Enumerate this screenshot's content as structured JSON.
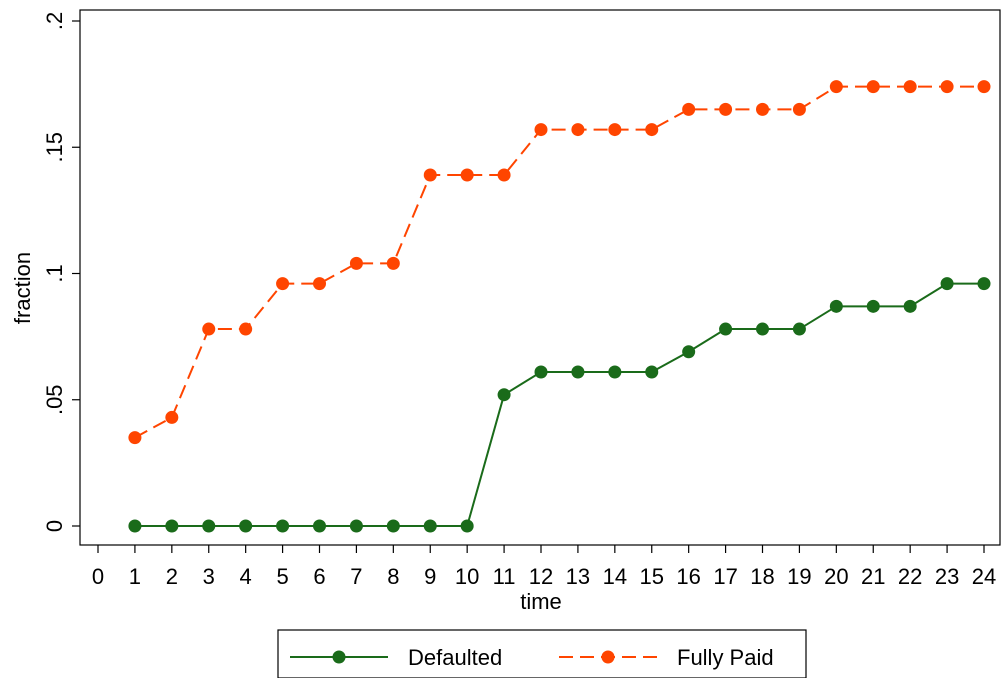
{
  "chart_data": {
    "type": "line",
    "xlabel": "time",
    "ylabel": "fraction",
    "x_ticks": [
      0,
      1,
      2,
      3,
      4,
      5,
      6,
      7,
      8,
      9,
      10,
      11,
      12,
      13,
      14,
      15,
      16,
      17,
      18,
      19,
      20,
      21,
      22,
      23,
      24
    ],
    "y_ticks": [
      {
        "value": 0,
        "label": "0"
      },
      {
        "value": 0.05,
        "label": ".05"
      },
      {
        "value": 0.1,
        "label": ".1"
      },
      {
        "value": 0.15,
        "label": ".15"
      },
      {
        "value": 0.2,
        "label": ".2"
      }
    ],
    "xlim": [
      0,
      24
    ],
    "ylim": [
      0,
      0.2
    ],
    "grid": false,
    "legend_position": "bottom",
    "x": [
      1,
      2,
      3,
      4,
      5,
      6,
      7,
      8,
      9,
      10,
      11,
      12,
      13,
      14,
      15,
      16,
      17,
      18,
      19,
      20,
      21,
      22,
      23,
      24
    ],
    "series": [
      {
        "name": "Defaulted",
        "color": "#1a6b1a",
        "line_style": "solid",
        "marker": "circle",
        "values": [
          0,
          0,
          0,
          0,
          0,
          0,
          0,
          0,
          0,
          0,
          0.052,
          0.061,
          0.061,
          0.061,
          0.061,
          0.069,
          0.078,
          0.078,
          0.078,
          0.087,
          0.087,
          0.087,
          0.096,
          0.096
        ]
      },
      {
        "name": "Fully Paid",
        "color": "#ff4500",
        "line_style": "dashed",
        "marker": "circle",
        "values": [
          0.035,
          0.043,
          0.078,
          0.078,
          0.096,
          0.096,
          0.104,
          0.104,
          0.139,
          0.139,
          0.139,
          0.157,
          0.157,
          0.157,
          0.157,
          0.165,
          0.165,
          0.165,
          0.165,
          0.174,
          0.174,
          0.174,
          0.174,
          0.174
        ]
      }
    ]
  }
}
